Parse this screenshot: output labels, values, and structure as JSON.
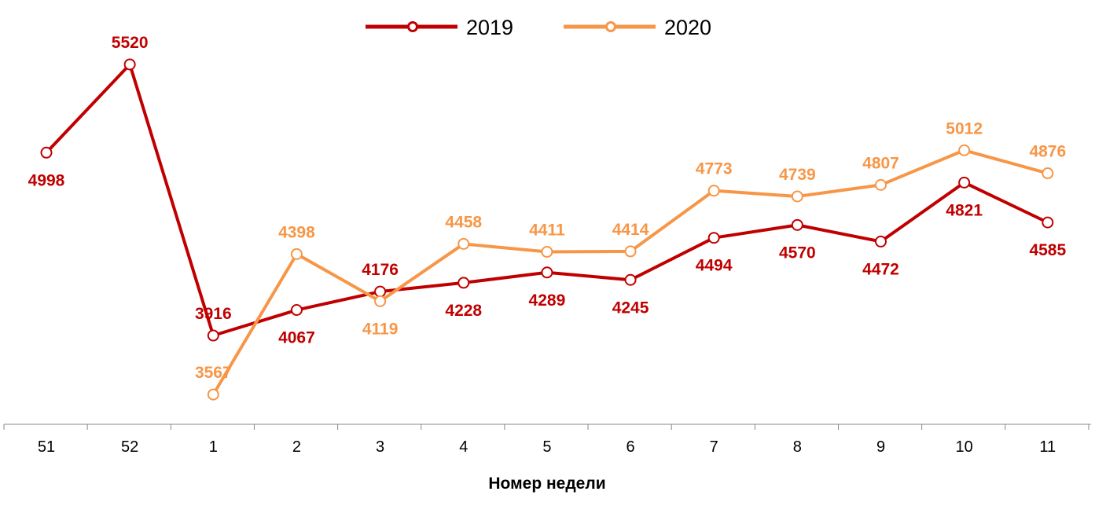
{
  "chart_data": {
    "type": "line",
    "title": "",
    "xlabel": "Номер недели",
    "ylabel": "",
    "categories": [
      "51",
      "52",
      "1",
      "2",
      "3",
      "4",
      "5",
      "6",
      "7",
      "8",
      "9",
      "10",
      "11"
    ],
    "grid": false,
    "legend_position": "top",
    "series": [
      {
        "name": "2019",
        "color": "#C00000",
        "values": [
          4998,
          5520,
          3916,
          4067,
          4176,
          4228,
          4289,
          4245,
          4494,
          4570,
          4472,
          4821,
          4585
        ]
      },
      {
        "name": "2020",
        "color": "#F79646",
        "values": [
          null,
          null,
          3567,
          4398,
          4119,
          4458,
          4411,
          4414,
          4773,
          4739,
          4807,
          5012,
          4876
        ]
      }
    ]
  }
}
